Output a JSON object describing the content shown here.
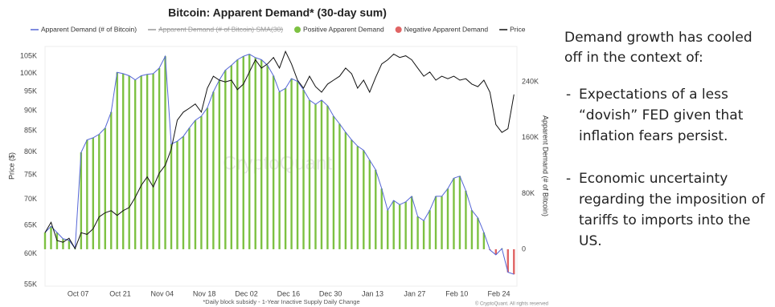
{
  "chart_data": {
    "type": "combo",
    "title": "Bitcoin: Apparent Demand* (30-day sum)",
    "y_label": "Price ($)",
    "y2_label": "Apparent Demand (# of Bitcoin)",
    "footnote": "*Daily block subsidy - 1-Year Inactive Supply Daily Change",
    "credit": "© CryptoQuant. All rights reserved",
    "watermark": "CryptoQuant",
    "log_y": true,
    "grid": false,
    "x": [
      0,
      2,
      4,
      6,
      8,
      10,
      12,
      14,
      16,
      18,
      20,
      22,
      24,
      26,
      28,
      30,
      32,
      34,
      36,
      38,
      40,
      42,
      44,
      46,
      48,
      50,
      52,
      54,
      56,
      58,
      60,
      62,
      64,
      66,
      68,
      70,
      72,
      74,
      76,
      78,
      80,
      82,
      84,
      86,
      88,
      90,
      92,
      94,
      96,
      98,
      100,
      102,
      104,
      106,
      108,
      110,
      112,
      114,
      116,
      118,
      120,
      122,
      124,
      126,
      128,
      130,
      132,
      134,
      136,
      138,
      140,
      142,
      144,
      146,
      148,
      150,
      152,
      154,
      156
    ],
    "xlim": [
      0,
      157
    ],
    "xticks": [
      {
        "value": 11,
        "label": "Oct 07"
      },
      {
        "value": 25,
        "label": "Oct 21"
      },
      {
        "value": 39,
        "label": "Nov 04"
      },
      {
        "value": 53,
        "label": "Nov 18"
      },
      {
        "value": 67,
        "label": "Dec 02"
      },
      {
        "value": 81,
        "label": "Dec 16"
      },
      {
        "value": 95,
        "label": "Dec 30"
      },
      {
        "value": 109,
        "label": "Jan 13"
      },
      {
        "value": 123,
        "label": "Jan 27"
      },
      {
        "value": 137,
        "label": "Feb 10"
      },
      {
        "value": 151,
        "label": "Feb 24"
      }
    ],
    "ylim": [
      54750,
      107900
    ],
    "yticks": [
      {
        "value": 55000,
        "label": "55K"
      },
      {
        "value": 60000,
        "label": "60K"
      },
      {
        "value": 65000,
        "label": "65K"
      },
      {
        "value": 70000,
        "label": "70K"
      },
      {
        "value": 75000,
        "label": "75K"
      },
      {
        "value": 80000,
        "label": "80K"
      },
      {
        "value": 85000,
        "label": "85K"
      },
      {
        "value": 90000,
        "label": "90K"
      },
      {
        "value": 95000,
        "label": "95K"
      },
      {
        "value": 100000,
        "label": "100K"
      },
      {
        "value": 105000,
        "label": "105K"
      }
    ],
    "y2lim": [
      -53000,
      291000
    ],
    "y2ticks": [
      0,
      {
        "value": 80000,
        "label": "80K"
      },
      {
        "value": 160000,
        "label": "160K"
      },
      {
        "value": 240000,
        "label": "240K"
      }
    ],
    "series": [
      {
        "name": "Apparent Demand (# of Bitcoin)",
        "type": "bar_line",
        "axis": "y2",
        "color": "#5566d6",
        "values": [
          24000,
          33000,
          24000,
          15000,
          13000,
          1000,
          139000,
          157000,
          160000,
          165000,
          174000,
          197000,
          254000,
          252000,
          249000,
          243000,
          249000,
          251000,
          252000,
          260000,
          277000,
          151000,
          155000,
          162000,
          174000,
          185000,
          191000,
          203000,
          226000,
          243000,
          257000,
          264000,
          272000,
          277000,
          280000,
          275000,
          272000,
          264000,
          249000,
          226000,
          231000,
          245000,
          241000,
          229000,
          214000,
          208000,
          214000,
          206000,
          191000,
          180000,
          168000,
          157000,
          148000,
          142000,
          128000,
          114000,
          87000,
          56000,
          70000,
          64000,
          68000,
          76000,
          47000,
          41000,
          56000,
          76000,
          76000,
          87000,
          102000,
          105000,
          84000,
          56000,
          45000,
          24000,
          -1000,
          -8000,
          1000,
          -33000,
          -36000
        ]
      },
      {
        "name": "Price",
        "type": "line",
        "axis": "y",
        "color": "#111111",
        "values": [
          63700,
          65600,
          62300,
          62000,
          62700,
          60900,
          63700,
          63400,
          64400,
          66600,
          67400,
          67800,
          66900,
          67800,
          68400,
          70400,
          72800,
          74600,
          72500,
          75400,
          77100,
          80700,
          87600,
          89600,
          90600,
          91700,
          89600,
          95900,
          99200,
          98100,
          97600,
          98100,
          95500,
          97000,
          100400,
          103900,
          101500,
          102700,
          104600,
          101500,
          106400,
          102700,
          98100,
          95900,
          99200,
          96300,
          94800,
          97000,
          98100,
          99200,
          101500,
          99900,
          95900,
          98100,
          94800,
          98900,
          102700,
          103900,
          105600,
          104600,
          105100,
          103900,
          101500,
          99200,
          100400,
          98100,
          99200,
          98500,
          99200,
          98100,
          98500,
          97000,
          96300,
          98100,
          94800,
          86500,
          84600,
          85500,
          94200
        ]
      }
    ],
    "hidden_series": [
      {
        "name": "Apparent Demand (# of Bitcoin) SMA(30)",
        "color": "#999999"
      }
    ],
    "bar_colors": {
      "positive": {
        "name": "Positive Apparent Demand",
        "color": "#7dc142"
      },
      "negative": {
        "name": "Negative Apparent Demand",
        "color": "#e06464"
      }
    }
  },
  "side_text": {
    "intro": [
      "Demand growth has cooled",
      "off in the context of:"
    ],
    "bullets": [
      {
        "marker": "-",
        "lines": [
          "Expectations of a less",
          "“dovish” FED given that",
          "inflation fears persist."
        ]
      },
      {
        "marker": "-",
        "lines": [
          "Economic uncertainty",
          "regarding the imposition of",
          "tariffs to imports into the",
          "US."
        ]
      }
    ]
  }
}
